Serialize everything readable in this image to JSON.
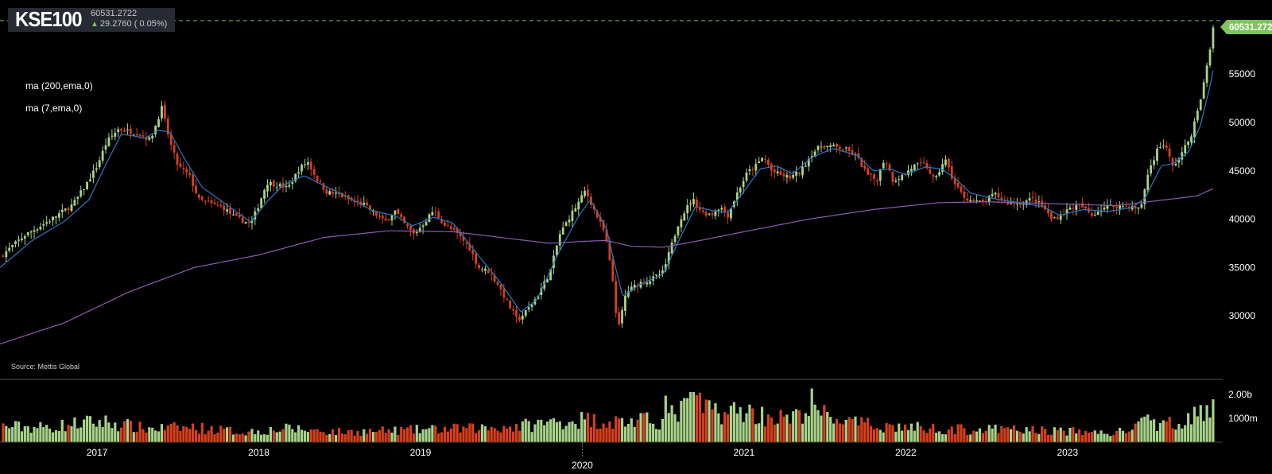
{
  "ticker": {
    "symbol": "KSE100",
    "last_price": "60531.2722",
    "change_text": "29.2760 ( 0.05%)",
    "direction": "up"
  },
  "studies": [
    {
      "label": "ma (200,ema,0)",
      "color": "#8e5ab5"
    },
    {
      "label": "ma (7,ema,0)",
      "color": "#2a78c8"
    }
  ],
  "source": "Source: Mettis Global",
  "last_price_flag": "60531.272",
  "colors": {
    "up": "#a8d38a",
    "down": "#d8401c",
    "background": "#000000",
    "grid_line": "#666666",
    "ema200": "#8e5ab5",
    "ema7": "#2a78c8",
    "flag": "#7dc45a"
  },
  "chart_data": {
    "type": "candlestick",
    "title": "KSE100",
    "frequency": "weekly",
    "price_axis": {
      "ticks": [
        "30000",
        "35000",
        "40000",
        "45000",
        "50000",
        "55000"
      ],
      "ylim": [
        25000,
        62000
      ]
    },
    "volume_axis": {
      "ticks": [
        "1000m",
        "2.00b"
      ],
      "ylim": [
        0,
        2.6
      ]
    },
    "x_axis": {
      "ticks": [
        "2017",
        "2018",
        "2019",
        "2020",
        "2021",
        "2022",
        "2023"
      ],
      "xlim": [
        2016.4,
        2023.92
      ],
      "highlight": "2020"
    },
    "close_path": [
      [
        2016.4,
        36100
      ],
      [
        2016.55,
        38300
      ],
      [
        2016.7,
        39800
      ],
      [
        2016.85,
        41500
      ],
      [
        2016.93,
        43500
      ],
      [
        2017.0,
        45500
      ],
      [
        2017.06,
        48000
      ],
      [
        2017.13,
        49300
      ],
      [
        2017.25,
        48900
      ],
      [
        2017.33,
        48200
      ],
      [
        2017.4,
        51500
      ],
      [
        2017.45,
        48000
      ],
      [
        2017.5,
        45500
      ],
      [
        2017.57,
        44500
      ],
      [
        2017.63,
        42000
      ],
      [
        2017.7,
        41600
      ],
      [
        2017.78,
        41200
      ],
      [
        2017.85,
        40200
      ],
      [
        2017.95,
        39500
      ],
      [
        2018.0,
        41500
      ],
      [
        2018.05,
        43800
      ],
      [
        2018.12,
        43500
      ],
      [
        2018.18,
        43200
      ],
      [
        2018.25,
        45200
      ],
      [
        2018.3,
        46000
      ],
      [
        2018.36,
        44100
      ],
      [
        2018.42,
        42800
      ],
      [
        2018.5,
        42500
      ],
      [
        2018.58,
        41800
      ],
      [
        2018.65,
        41500
      ],
      [
        2018.72,
        40500
      ],
      [
        2018.78,
        39700
      ],
      [
        2018.84,
        40900
      ],
      [
        2018.9,
        39500
      ],
      [
        2018.96,
        38400
      ],
      [
        2019.02,
        39600
      ],
      [
        2019.08,
        40900
      ],
      [
        2019.15,
        39400
      ],
      [
        2019.22,
        38600
      ],
      [
        2019.3,
        37100
      ],
      [
        2019.36,
        35000
      ],
      [
        2019.42,
        34600
      ],
      [
        2019.48,
        33200
      ],
      [
        2019.55,
        31000
      ],
      [
        2019.6,
        29500
      ],
      [
        2019.66,
        30600
      ],
      [
        2019.72,
        32000
      ],
      [
        2019.8,
        34500
      ],
      [
        2019.86,
        38400
      ],
      [
        2019.93,
        40500
      ],
      [
        2019.98,
        41800
      ],
      [
        2020.02,
        43000
      ],
      [
        2020.08,
        40700
      ],
      [
        2020.14,
        38500
      ],
      [
        2020.19,
        33500
      ],
      [
        2020.22,
        28400
      ],
      [
        2020.27,
        32400
      ],
      [
        2020.35,
        33400
      ],
      [
        2020.42,
        33700
      ],
      [
        2020.5,
        34500
      ],
      [
        2020.55,
        37200
      ],
      [
        2020.6,
        39900
      ],
      [
        2020.68,
        42100
      ],
      [
        2020.74,
        40700
      ],
      [
        2020.8,
        40500
      ],
      [
        2020.85,
        41300
      ],
      [
        2020.9,
        40400
      ],
      [
        2020.96,
        42800
      ],
      [
        2021.02,
        44800
      ],
      [
        2021.08,
        45600
      ],
      [
        2021.12,
        46500
      ],
      [
        2021.17,
        45000
      ],
      [
        2021.22,
        44600
      ],
      [
        2021.28,
        44300
      ],
      [
        2021.35,
        44900
      ],
      [
        2021.42,
        46800
      ],
      [
        2021.48,
        47600
      ],
      [
        2021.55,
        47500
      ],
      [
        2021.63,
        47200
      ],
      [
        2021.7,
        46400
      ],
      [
        2021.76,
        44600
      ],
      [
        2021.82,
        44000
      ],
      [
        2021.87,
        46400
      ],
      [
        2021.92,
        44000
      ],
      [
        2021.98,
        44500
      ],
      [
        2022.05,
        45500
      ],
      [
        2022.12,
        45700
      ],
      [
        2022.18,
        43900
      ],
      [
        2022.24,
        46300
      ],
      [
        2022.3,
        43700
      ],
      [
        2022.36,
        42300
      ],
      [
        2022.42,
        41800
      ],
      [
        2022.48,
        41700
      ],
      [
        2022.55,
        42600
      ],
      [
        2022.62,
        41700
      ],
      [
        2022.7,
        41600
      ],
      [
        2022.78,
        42100
      ],
      [
        2022.85,
        41300
      ],
      [
        2022.9,
        40000
      ],
      [
        2022.96,
        40400
      ],
      [
        2023.02,
        41200
      ],
      [
        2023.08,
        41400
      ],
      [
        2023.15,
        40400
      ],
      [
        2023.22,
        41200
      ],
      [
        2023.3,
        41400
      ],
      [
        2023.38,
        41300
      ],
      [
        2023.45,
        41000
      ],
      [
        2023.5,
        44900
      ],
      [
        2023.56,
        47400
      ],
      [
        2023.6,
        47800
      ],
      [
        2023.65,
        45400
      ],
      [
        2023.7,
        46600
      ],
      [
        2023.76,
        48500
      ],
      [
        2023.8,
        50800
      ],
      [
        2023.84,
        53800
      ],
      [
        2023.88,
        57500
      ],
      [
        2023.905,
        60531
      ]
    ],
    "ema200_path": [
      [
        2016.4,
        27100
      ],
      [
        2016.8,
        29300
      ],
      [
        2017.2,
        32500
      ],
      [
        2017.6,
        35000
      ],
      [
        2018.0,
        36300
      ],
      [
        2018.4,
        38100
      ],
      [
        2018.8,
        38800
      ],
      [
        2019.2,
        38700
      ],
      [
        2019.6,
        37900
      ],
      [
        2019.8,
        37500
      ],
      [
        2020.0,
        37700
      ],
      [
        2020.15,
        37800
      ],
      [
        2020.3,
        37200
      ],
      [
        2020.5,
        37100
      ],
      [
        2020.7,
        37700
      ],
      [
        2021.0,
        38700
      ],
      [
        2021.4,
        40000
      ],
      [
        2021.8,
        41000
      ],
      [
        2022.2,
        41700
      ],
      [
        2022.5,
        41800
      ],
      [
        2022.9,
        41600
      ],
      [
        2023.3,
        41400
      ],
      [
        2023.6,
        42000
      ],
      [
        2023.8,
        42400
      ],
      [
        2023.905,
        43200
      ]
    ],
    "ema7_path": [
      [
        2016.4,
        35000
      ],
      [
        2016.6,
        37800
      ],
      [
        2016.8,
        39800
      ],
      [
        2016.95,
        42000
      ],
      [
        2017.05,
        45500
      ],
      [
        2017.15,
        48800
      ],
      [
        2017.3,
        48400
      ],
      [
        2017.38,
        49200
      ],
      [
        2017.45,
        49000
      ],
      [
        2017.55,
        46000
      ],
      [
        2017.65,
        43300
      ],
      [
        2017.8,
        41500
      ],
      [
        2017.95,
        39700
      ],
      [
        2018.05,
        41800
      ],
      [
        2018.15,
        43500
      ],
      [
        2018.28,
        44500
      ],
      [
        2018.4,
        43500
      ],
      [
        2018.55,
        42300
      ],
      [
        2018.7,
        40900
      ],
      [
        2018.85,
        40300
      ],
      [
        2018.95,
        39300
      ],
      [
        2019.08,
        40200
      ],
      [
        2019.2,
        39600
      ],
      [
        2019.35,
        36400
      ],
      [
        2019.5,
        33300
      ],
      [
        2019.62,
        30400
      ],
      [
        2019.72,
        31700
      ],
      [
        2019.85,
        36400
      ],
      [
        2019.98,
        40400
      ],
      [
        2020.05,
        42000
      ],
      [
        2020.15,
        39000
      ],
      [
        2020.2,
        35400
      ],
      [
        2020.25,
        32000
      ],
      [
        2020.35,
        33200
      ],
      [
        2020.5,
        34300
      ],
      [
        2020.6,
        37900
      ],
      [
        2020.7,
        41300
      ],
      [
        2020.8,
        40900
      ],
      [
        2020.9,
        40700
      ],
      [
        2021.0,
        42900
      ],
      [
        2021.1,
        45200
      ],
      [
        2021.2,
        45500
      ],
      [
        2021.3,
        44700
      ],
      [
        2021.42,
        46400
      ],
      [
        2021.55,
        47300
      ],
      [
        2021.7,
        46600
      ],
      [
        2021.8,
        45000
      ],
      [
        2021.9,
        45200
      ],
      [
        2022.0,
        44600
      ],
      [
        2022.12,
        45400
      ],
      [
        2022.22,
        45200
      ],
      [
        2022.3,
        44300
      ],
      [
        2022.4,
        42700
      ],
      [
        2022.55,
        42100
      ],
      [
        2022.7,
        41700
      ],
      [
        2022.85,
        41300
      ],
      [
        2022.95,
        40400
      ],
      [
        2023.1,
        41000
      ],
      [
        2023.25,
        40800
      ],
      [
        2023.4,
        41200
      ],
      [
        2023.48,
        42200
      ],
      [
        2023.58,
        45500
      ],
      [
        2023.66,
        45800
      ],
      [
        2023.75,
        47000
      ],
      [
        2023.82,
        49600
      ],
      [
        2023.88,
        53700
      ],
      [
        2023.905,
        55800
      ]
    ],
    "volume_b_path": [
      [
        2016.4,
        0.7
      ],
      [
        2016.7,
        0.65
      ],
      [
        2016.9,
        0.85
      ],
      [
        2017.05,
        0.9
      ],
      [
        2017.3,
        0.6
      ],
      [
        2017.6,
        0.65
      ],
      [
        2017.9,
        0.45
      ],
      [
        2018.2,
        0.6
      ],
      [
        2018.5,
        0.45
      ],
      [
        2018.8,
        0.5
      ],
      [
        2019.0,
        0.55
      ],
      [
        2019.3,
        0.6
      ],
      [
        2019.6,
        0.7
      ],
      [
        2019.9,
        0.95
      ],
      [
        2020.0,
        1.0
      ],
      [
        2020.2,
        0.9
      ],
      [
        2020.5,
        0.95
      ],
      [
        2020.6,
        1.4
      ],
      [
        2020.7,
        1.6
      ],
      [
        2020.9,
        1.3
      ],
      [
        2021.0,
        1.4
      ],
      [
        2021.1,
        1.2
      ],
      [
        2021.3,
        1.0
      ],
      [
        2021.4,
        1.5
      ],
      [
        2021.5,
        1.2
      ],
      [
        2021.7,
        0.8
      ],
      [
        2021.9,
        0.7
      ],
      [
        2022.2,
        0.6
      ],
      [
        2022.4,
        0.55
      ],
      [
        2022.7,
        0.55
      ],
      [
        2022.95,
        0.5
      ],
      [
        2023.1,
        0.45
      ],
      [
        2023.3,
        0.4
      ],
      [
        2023.5,
        0.9
      ],
      [
        2023.6,
        0.75
      ],
      [
        2023.7,
        1.0
      ],
      [
        2023.8,
        1.2
      ],
      [
        2023.9,
        1.35
      ]
    ],
    "volume_spikes_b": [
      [
        2021.42,
        2.25
      ],
      [
        2020.68,
        2.1
      ],
      [
        2020.52,
        1.95
      ]
    ]
  }
}
